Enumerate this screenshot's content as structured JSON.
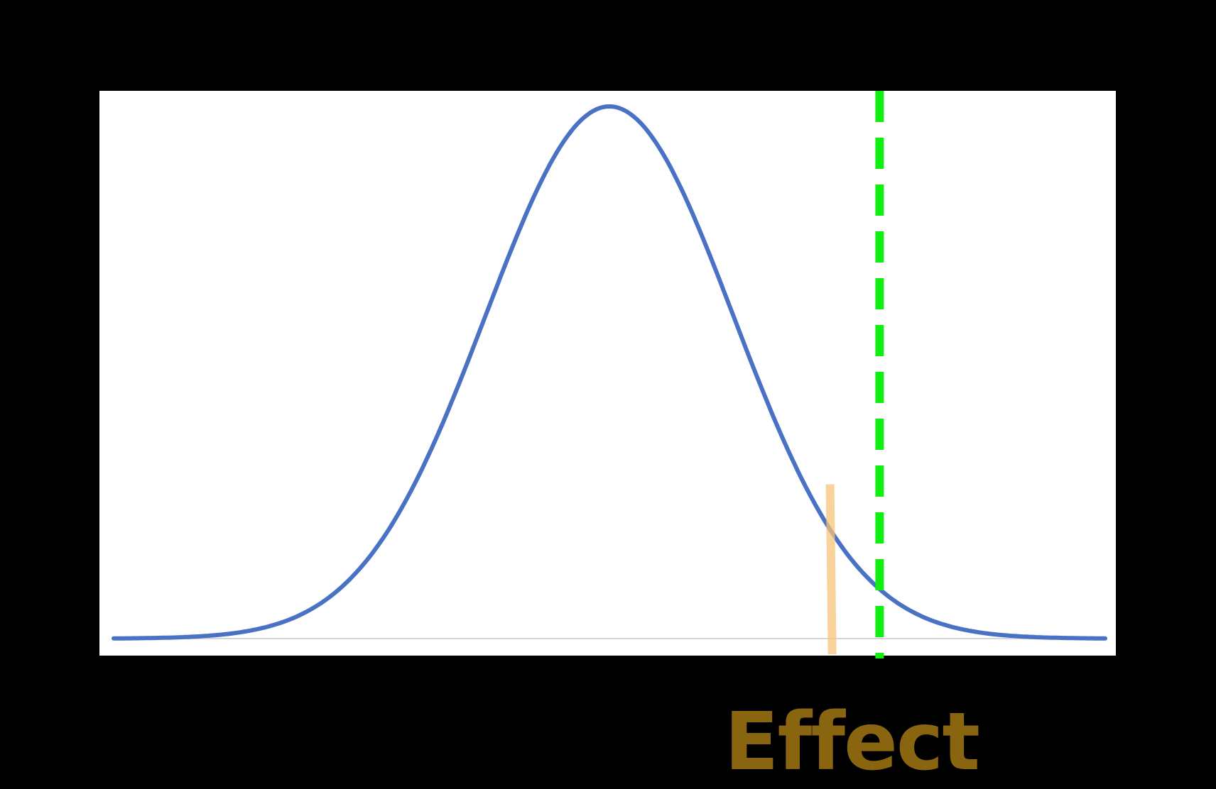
{
  "caption": "Effect",
  "colors": {
    "background": "#000000",
    "panel": "#ffffff",
    "baseline": "#d6d6d6",
    "curve": "#4a72c4",
    "critical_line": "#11ee11",
    "effect_marker": "#f6c47a",
    "caption": "#8a6510"
  },
  "chart_data": {
    "type": "line",
    "title": "",
    "xlabel": "",
    "ylabel": "",
    "grid": false,
    "legend": "none",
    "x_range": [
      -4,
      4
    ],
    "y_range": [
      0,
      1
    ],
    "series": [
      {
        "distribution": "normal",
        "mean": 0,
        "sd": 1,
        "peak": 1,
        "style": "solid"
      }
    ],
    "vertical_lines": [
      {
        "id": "critical",
        "x": 2.18,
        "y_top": 1.03,
        "style": "dashed"
      },
      {
        "id": "effect",
        "x": 1.78,
        "y_top": 0.29,
        "style": "solid"
      }
    ]
  }
}
